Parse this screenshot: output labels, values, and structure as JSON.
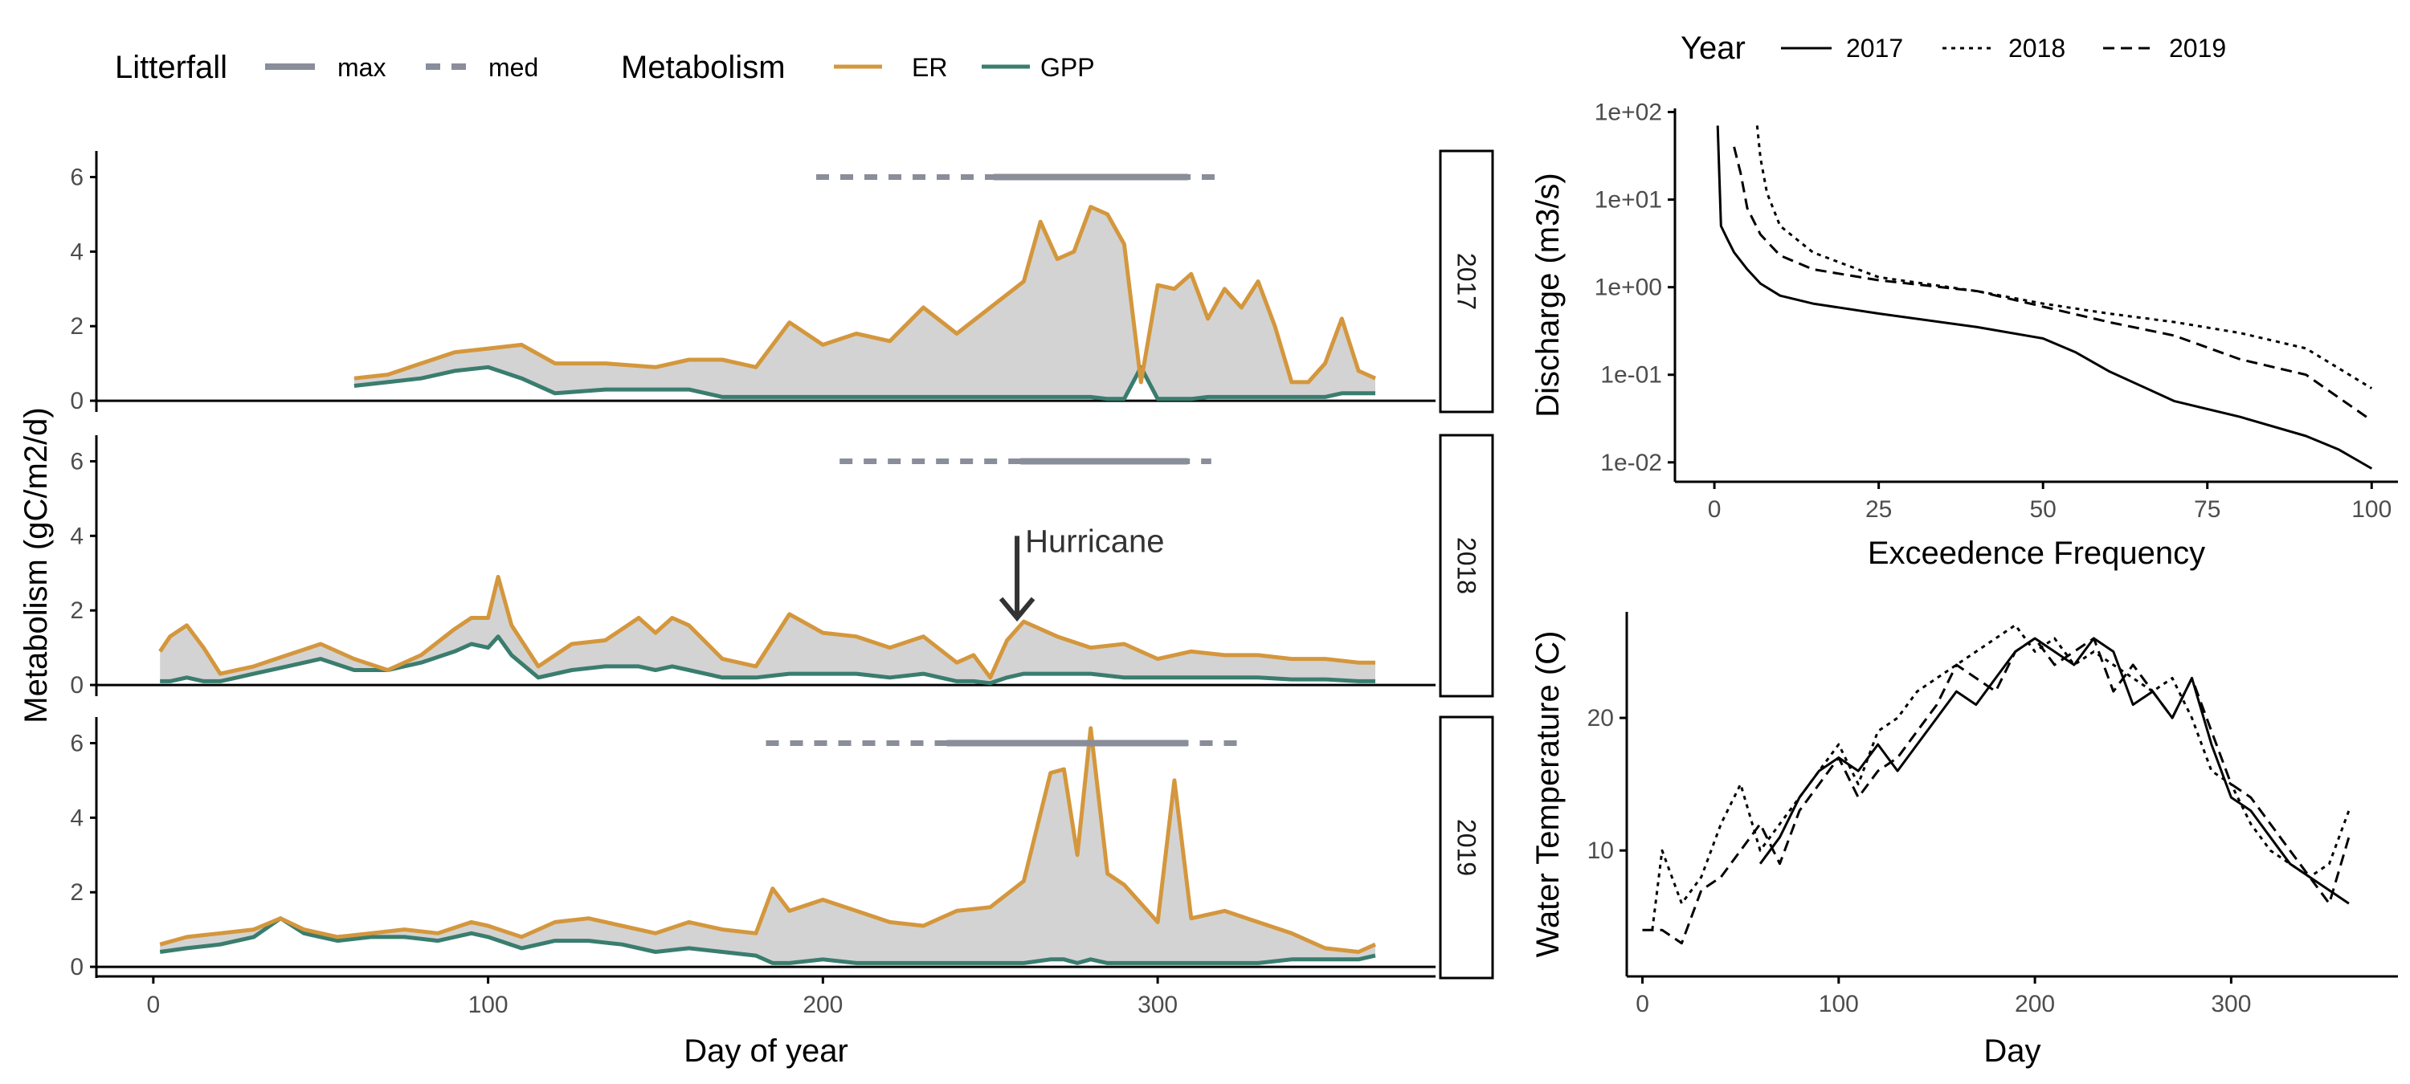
{
  "legend_top_left": {
    "litterfall_title": "Litterfall",
    "litterfall_items": [
      {
        "label": "max",
        "style": "solid"
      },
      {
        "label": "med",
        "style": "dashed"
      }
    ],
    "metabolism_title": "Metabolism",
    "metabolism_items": [
      {
        "label": "ER",
        "color": "#D4973D"
      },
      {
        "label": "GPP",
        "color": "#3A7D6E"
      }
    ]
  },
  "legend_top_right": {
    "title": "Year",
    "items": [
      {
        "label": "2017",
        "style": "solid"
      },
      {
        "label": "2018",
        "style": "dotted"
      },
      {
        "label": "2019",
        "style": "dashed"
      }
    ]
  },
  "colors": {
    "ER": "#D4973D",
    "GPP": "#3A7D6E",
    "ribbon": "#D3D3D3",
    "litterfall": "#8A8D9A",
    "lines": "#000000"
  },
  "chart_data": [
    {
      "type": "line",
      "panel": "metabolism",
      "xlabel": "Day of year",
      "ylabel": "Metabolism (gC/m2/d)",
      "xlim": [
        -17,
        383
      ],
      "ylim": [
        -0.3,
        6.7
      ],
      "xticks": [
        "0",
        "100",
        "200",
        "300"
      ],
      "yticks": [
        "0",
        "2",
        "4",
        "6"
      ],
      "annotation": {
        "text": "Hurricane",
        "year": "2018",
        "x": 258,
        "y_from": 4.0,
        "y_to": 1.8
      },
      "facets": [
        {
          "label": "2017",
          "litterfall": {
            "med": [
              198,
              317
            ],
            "max": [
              251,
              309
            ],
            "y": 6
          },
          "x": [
            60,
            70,
            80,
            90,
            100,
            110,
            120,
            135,
            150,
            160,
            170,
            180,
            190,
            200,
            210,
            220,
            230,
            240,
            250,
            260,
            265,
            270,
            275,
            280,
            285,
            290,
            295,
            300,
            305,
            310,
            315,
            320,
            325,
            330,
            335,
            340,
            345,
            350,
            355,
            360,
            365
          ],
          "ER": [
            0.6,
            0.7,
            1.0,
            1.3,
            1.4,
            1.5,
            1.0,
            1.0,
            0.9,
            1.1,
            1.1,
            0.9,
            2.1,
            1.5,
            1.8,
            1.6,
            2.5,
            1.8,
            2.5,
            3.2,
            4.8,
            3.8,
            4.0,
            5.2,
            5.0,
            4.2,
            0.5,
            3.1,
            3.0,
            3.4,
            2.2,
            3.0,
            2.5,
            3.2,
            2.0,
            0.5,
            0.5,
            1.0,
            2.2,
            0.8,
            0.6
          ],
          "GPP": [
            0.4,
            0.5,
            0.6,
            0.8,
            0.9,
            0.6,
            0.2,
            0.3,
            0.3,
            0.3,
            0.1,
            0.1,
            0.1,
            0.1,
            0.1,
            0.1,
            0.1,
            0.1,
            0.1,
            0.1,
            0.1,
            0.1,
            0.1,
            0.1,
            0.05,
            0.05,
            0.9,
            0.05,
            0.05,
            0.05,
            0.1,
            0.1,
            0.1,
            0.1,
            0.1,
            0.1,
            0.1,
            0.1,
            0.2,
            0.2,
            0.2
          ]
        },
        {
          "label": "2018",
          "litterfall": {
            "med": [
              205,
              316
            ],
            "max": [
              259,
              309
            ],
            "y": 6
          },
          "x": [
            2,
            5,
            10,
            15,
            20,
            25,
            30,
            40,
            50,
            60,
            70,
            80,
            90,
            95,
            100,
            103,
            107,
            115,
            125,
            135,
            145,
            150,
            155,
            160,
            170,
            180,
            190,
            200,
            210,
            220,
            230,
            240,
            245,
            250,
            255,
            260,
            270,
            280,
            290,
            300,
            310,
            320,
            330,
            340,
            350,
            360,
            365
          ],
          "ER": [
            0.9,
            1.3,
            1.6,
            1.0,
            0.3,
            0.4,
            0.5,
            0.8,
            1.1,
            0.7,
            0.4,
            0.8,
            1.5,
            1.8,
            1.8,
            2.9,
            1.6,
            0.5,
            1.1,
            1.2,
            1.8,
            1.4,
            1.8,
            1.6,
            0.7,
            0.5,
            1.9,
            1.4,
            1.3,
            1.0,
            1.3,
            0.6,
            0.8,
            0.2,
            1.2,
            1.7,
            1.3,
            1.0,
            1.1,
            0.7,
            0.9,
            0.8,
            0.8,
            0.7,
            0.7,
            0.6,
            0.6
          ],
          "GPP": [
            0.1,
            0.1,
            0.2,
            0.1,
            0.1,
            0.2,
            0.3,
            0.5,
            0.7,
            0.4,
            0.4,
            0.6,
            0.9,
            1.1,
            1.0,
            1.3,
            0.8,
            0.2,
            0.4,
            0.5,
            0.5,
            0.4,
            0.5,
            0.4,
            0.2,
            0.2,
            0.3,
            0.3,
            0.3,
            0.2,
            0.3,
            0.1,
            0.1,
            0.05,
            0.2,
            0.3,
            0.3,
            0.3,
            0.2,
            0.2,
            0.2,
            0.2,
            0.2,
            0.15,
            0.15,
            0.1,
            0.1
          ]
        },
        {
          "label": "2019",
          "litterfall": {
            "med": [
              183,
              325
            ],
            "max": [
              237,
              309
            ],
            "y": 6
          },
          "x": [
            2,
            10,
            20,
            30,
            38,
            45,
            55,
            65,
            75,
            85,
            95,
            100,
            110,
            120,
            130,
            140,
            150,
            160,
            170,
            180,
            185,
            190,
            200,
            210,
            220,
            230,
            240,
            250,
            260,
            268,
            272,
            276,
            280,
            285,
            290,
            300,
            305,
            310,
            320,
            330,
            340,
            350,
            360,
            365
          ],
          "ER": [
            0.6,
            0.8,
            0.9,
            1.0,
            1.3,
            1.0,
            0.8,
            0.9,
            1.0,
            0.9,
            1.2,
            1.1,
            0.8,
            1.2,
            1.3,
            1.1,
            0.9,
            1.2,
            1.0,
            0.9,
            2.1,
            1.5,
            1.8,
            1.5,
            1.2,
            1.1,
            1.5,
            1.6,
            2.3,
            5.2,
            5.3,
            3.0,
            6.4,
            2.5,
            2.2,
            1.2,
            5.0,
            1.3,
            1.5,
            1.2,
            0.9,
            0.5,
            0.4,
            0.6
          ],
          "GPP": [
            0.4,
            0.5,
            0.6,
            0.8,
            1.3,
            0.9,
            0.7,
            0.8,
            0.8,
            0.7,
            0.9,
            0.8,
            0.5,
            0.7,
            0.7,
            0.6,
            0.4,
            0.5,
            0.4,
            0.3,
            0.1,
            0.1,
            0.2,
            0.1,
            0.1,
            0.1,
            0.1,
            0.1,
            0.1,
            0.2,
            0.2,
            0.1,
            0.2,
            0.1,
            0.1,
            0.1,
            0.1,
            0.1,
            0.1,
            0.1,
            0.2,
            0.2,
            0.2,
            0.3
          ]
        }
      ]
    },
    {
      "type": "line",
      "panel": "discharge",
      "xlabel": "Exceedence Frequency",
      "ylabel": "Discharge (m3/s)",
      "ylog": true,
      "xlim": [
        -6,
        104
      ],
      "ylim": [
        0.006,
        110
      ],
      "xticks": [
        0,
        25,
        50,
        75,
        100
      ],
      "xticklabels": [
        "0",
        "25",
        "50",
        "75",
        "100"
      ],
      "yticks": [
        0.01,
        0.1,
        1,
        10,
        100
      ],
      "yticklabels": [
        "1e-02",
        "1e-01",
        "1e+00",
        "1e+01",
        "1e+02"
      ],
      "series": [
        {
          "name": "2017",
          "style": "solid",
          "x": [
            0.5,
            1,
            2,
            3,
            5,
            7,
            10,
            15,
            25,
            40,
            50,
            55,
            60,
            70,
            80,
            90,
            95,
            100
          ],
          "y": [
            70,
            5,
            3.5,
            2.5,
            1.6,
            1.1,
            0.8,
            0.65,
            0.5,
            0.35,
            0.26,
            0.18,
            0.11,
            0.05,
            0.033,
            0.02,
            0.014,
            0.0085
          ]
        },
        {
          "name": "2018",
          "style": "dotted",
          "x": [
            6.5,
            7,
            8,
            10,
            15,
            25,
            40,
            50,
            60,
            70,
            80,
            90,
            100
          ],
          "y": [
            70,
            30,
            12,
            5,
            2.5,
            1.3,
            0.9,
            0.65,
            0.5,
            0.4,
            0.3,
            0.2,
            0.07
          ]
        },
        {
          "name": "2019",
          "style": "dashed",
          "x": [
            3,
            4,
            5,
            7,
            10,
            15,
            25,
            40,
            50,
            60,
            70,
            80,
            90,
            100
          ],
          "y": [
            40,
            20,
            8,
            4,
            2.3,
            1.6,
            1.2,
            0.9,
            0.6,
            0.4,
            0.28,
            0.15,
            0.1,
            0.03
          ]
        }
      ]
    },
    {
      "type": "line",
      "panel": "temperature",
      "xlabel": "Day",
      "ylabel": "Water Temperature (C)",
      "xlim": [
        -8,
        385
      ],
      "ylim": [
        0.5,
        28
      ],
      "xticks": [
        0,
        100,
        200,
        300
      ],
      "xticklabels": [
        "0",
        "100",
        "200",
        "300"
      ],
      "yticks": [
        10,
        20
      ],
      "yticklabels": [
        "10",
        "20"
      ],
      "series": [
        {
          "name": "2017",
          "style": "solid",
          "x": [
            60,
            70,
            80,
            90,
            100,
            110,
            120,
            130,
            140,
            150,
            160,
            170,
            180,
            190,
            200,
            210,
            220,
            230,
            240,
            250,
            260,
            270,
            280,
            290,
            300,
            310,
            320,
            330,
            340,
            350,
            360
          ],
          "y": [
            9,
            11,
            14,
            16,
            17,
            16,
            18,
            16,
            18,
            20,
            22,
            21,
            23,
            25,
            26,
            25,
            24,
            26,
            25,
            21,
            22,
            20,
            23,
            18,
            14,
            13,
            11,
            9,
            8,
            7,
            6
          ]
        },
        {
          "name": "2018",
          "style": "dotted",
          "x": [
            5,
            10,
            20,
            30,
            40,
            50,
            60,
            70,
            80,
            90,
            100,
            110,
            120,
            130,
            140,
            150,
            160,
            170,
            180,
            190,
            200,
            210,
            220,
            230,
            240,
            250,
            260,
            270,
            280,
            290,
            300,
            310,
            320,
            330,
            340,
            350,
            360
          ],
          "y": [
            4,
            10,
            6,
            8,
            12,
            15,
            10,
            12,
            14,
            16,
            18,
            15,
            19,
            20,
            22,
            23,
            24,
            25,
            26,
            27,
            25,
            26,
            24,
            25,
            24,
            23,
            22,
            23,
            20,
            16,
            15,
            12,
            10,
            9,
            8,
            9,
            13
          ]
        },
        {
          "name": "2019",
          "style": "dashed",
          "x": [
            0,
            10,
            20,
            30,
            40,
            50,
            60,
            70,
            80,
            90,
            100,
            110,
            120,
            130,
            140,
            150,
            160,
            170,
            180,
            190,
            200,
            210,
            220,
            230,
            240,
            250,
            260,
            270,
            280,
            290,
            300,
            310,
            320,
            330,
            340,
            350,
            360
          ],
          "y": [
            4,
            4,
            3,
            7,
            8,
            10,
            12,
            9,
            13,
            15,
            17,
            14,
            16,
            17,
            19,
            21,
            24,
            23,
            22,
            25,
            26,
            24,
            25,
            26,
            22,
            24,
            22,
            20,
            23,
            19,
            15,
            14,
            12,
            10,
            8,
            6,
            11
          ]
        }
      ]
    }
  ]
}
